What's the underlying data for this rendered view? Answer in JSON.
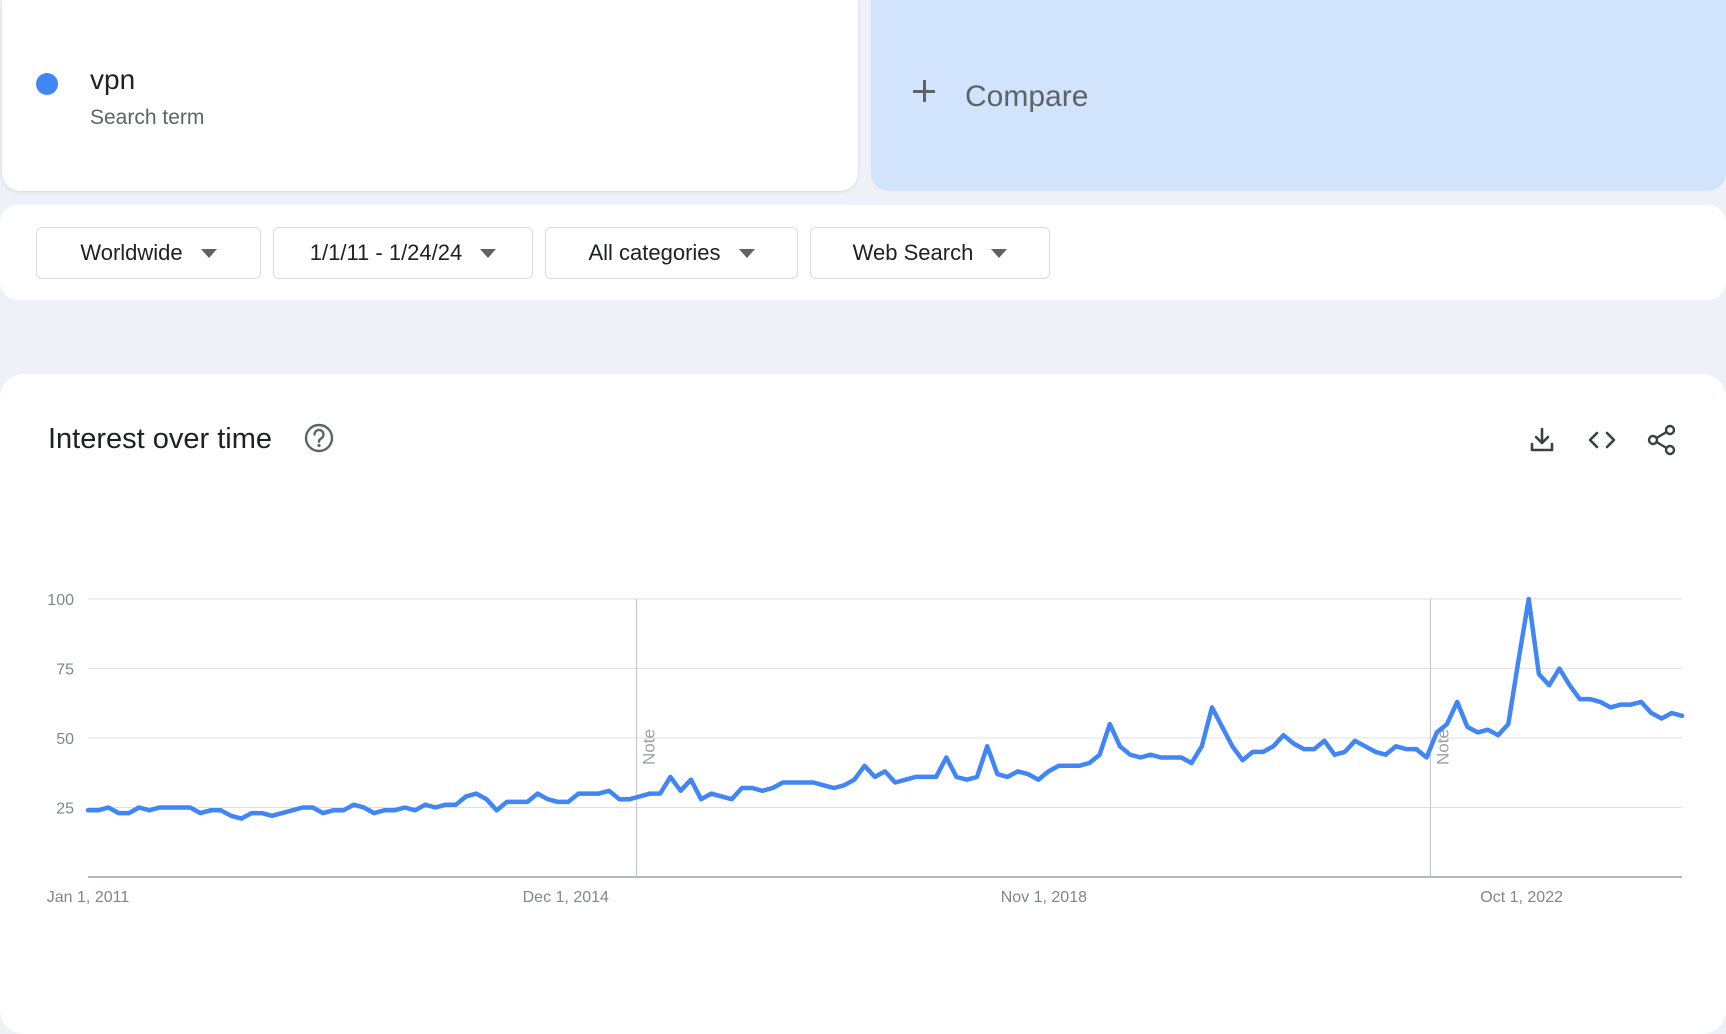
{
  "term": {
    "name": "vpn",
    "type": "Search term",
    "color": "#4285f4"
  },
  "compare": {
    "label": "Compare",
    "icon": "plus-icon",
    "bg": "#d2e3fc"
  },
  "filters": {
    "region": "Worldwide",
    "date_range": "1/1/11 - 1/24/24",
    "category": "All categories",
    "property": "Web Search"
  },
  "chart_panel": {
    "title": "Interest over time",
    "help_icon": "help-icon",
    "actions": [
      "download-icon",
      "embed-icon",
      "share-icon"
    ]
  },
  "chart_data": {
    "type": "line",
    "title": "",
    "xlabel": "",
    "ylabel": "",
    "x_start": "Jan 1, 2011",
    "x_end": "Jan 24, 2024",
    "ylim": [
      0,
      100
    ],
    "y_ticks": [
      25,
      50,
      75,
      100
    ],
    "x_ticks": [
      "Jan 1, 2011",
      "Dec 1, 2014",
      "Nov 1, 2018",
      "Oct 1, 2022"
    ],
    "grid": true,
    "series": [
      {
        "name": "vpn",
        "color": "#4285f4",
        "values": [
          24,
          24,
          25,
          23,
          23,
          25,
          24,
          25,
          25,
          25,
          25,
          23,
          24,
          24,
          22,
          21,
          23,
          23,
          22,
          23,
          24,
          25,
          25,
          23,
          24,
          24,
          26,
          25,
          23,
          24,
          24,
          25,
          24,
          26,
          25,
          26,
          26,
          29,
          30,
          28,
          24,
          27,
          27,
          27,
          30,
          28,
          27,
          27,
          30,
          30,
          30,
          31,
          28,
          28,
          29,
          30,
          30,
          36,
          31,
          35,
          28,
          30,
          29,
          28,
          32,
          32,
          31,
          32,
          34,
          34,
          34,
          34,
          33,
          32,
          33,
          35,
          40,
          36,
          38,
          34,
          35,
          36,
          36,
          36,
          43,
          36,
          35,
          36,
          47,
          37,
          36,
          38,
          37,
          35,
          38,
          40,
          40,
          40,
          41,
          44,
          55,
          47,
          44,
          43,
          44,
          43,
          43,
          43,
          41,
          47,
          61,
          54,
          47,
          42,
          45,
          45,
          47,
          51,
          48,
          46,
          46,
          49,
          44,
          45,
          49,
          47,
          45,
          44,
          47,
          46,
          46,
          43,
          52,
          55,
          63,
          54,
          52,
          53,
          51,
          55,
          78,
          100,
          73,
          69,
          75,
          69,
          64,
          64,
          63,
          61,
          62,
          62,
          63,
          59,
          57,
          59,
          58
        ]
      }
    ],
    "annotations": [
      {
        "label": "Note",
        "x": "2015-07"
      },
      {
        "label": "Note",
        "x": "2022-01"
      }
    ]
  }
}
